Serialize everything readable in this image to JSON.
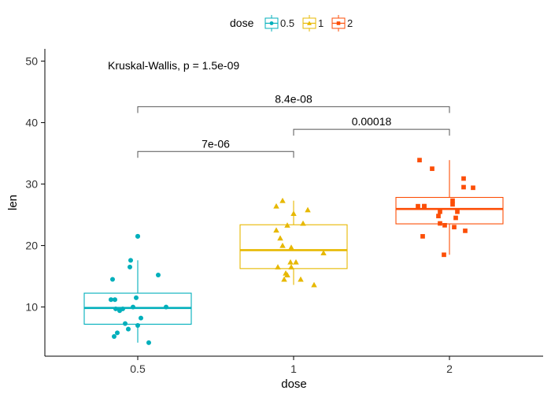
{
  "chart_data": {
    "type": "boxplot",
    "xlabel": "dose",
    "ylabel": "len",
    "categories": [
      "0.5",
      "1",
      "2"
    ],
    "ylim": [
      2,
      52
    ],
    "yticks": [
      10,
      20,
      30,
      40,
      50
    ],
    "legend": {
      "title": "dose",
      "position": "top"
    },
    "annotation": "Kruskal-Wallis, p = 1.5e-09",
    "colors": [
      "#00AFBB",
      "#E7B800",
      "#FC4E07"
    ],
    "groups": [
      {
        "name": "0.5",
        "marker": "circle",
        "box": {
          "min": 4.2,
          "q1": 7.2,
          "median": 9.85,
          "q3": 12.25,
          "max": 17.6
        },
        "outliers": [
          21.5
        ],
        "points": [
          4.2,
          11.5,
          7.3,
          5.8,
          6.4,
          10.0,
          11.2,
          11.2,
          5.2,
          7.0,
          15.2,
          21.5,
          17.6,
          9.7,
          14.5,
          10.0,
          8.2,
          9.4,
          16.5,
          9.7
        ]
      },
      {
        "name": "1",
        "marker": "triangle",
        "box": {
          "min": 13.6,
          "q1": 16.25,
          "median": 19.25,
          "q3": 23.38,
          "max": 27.3
        },
        "outliers": [],
        "points": [
          16.5,
          16.5,
          15.2,
          17.3,
          22.5,
          17.3,
          13.6,
          14.5,
          18.8,
          15.5,
          19.7,
          23.3,
          23.6,
          26.4,
          20.0,
          25.2,
          25.8,
          21.2,
          14.5,
          27.3
        ]
      },
      {
        "name": "2",
        "marker": "square",
        "box": {
          "min": 18.5,
          "q1": 23.53,
          "median": 25.95,
          "q3": 27.83,
          "max": 33.9
        },
        "outliers": [],
        "points": [
          23.6,
          18.5,
          33.9,
          25.5,
          26.4,
          32.5,
          26.7,
          21.5,
          23.3,
          29.5,
          25.5,
          26.4,
          22.4,
          24.5,
          24.8,
          30.9,
          26.4,
          27.3,
          29.4,
          23.0
        ]
      }
    ],
    "comparisons": [
      {
        "from": "0.5",
        "to": "1",
        "label": "7e-06",
        "y": 35.3
      },
      {
        "from": "1",
        "to": "2",
        "label": "0.00018",
        "y": 38.9
      },
      {
        "from": "0.5",
        "to": "2",
        "label": "8.4e-08",
        "y": 42.6
      }
    ]
  }
}
